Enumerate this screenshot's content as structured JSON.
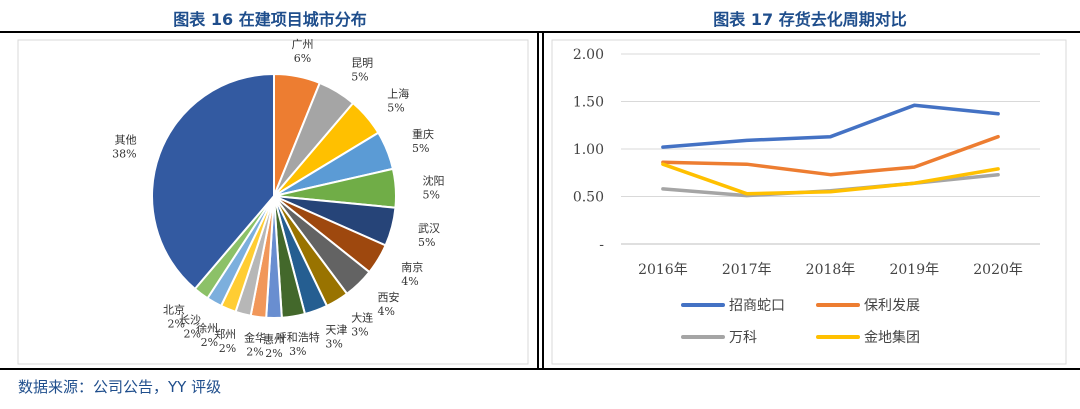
{
  "titles": {
    "pie": "图表 16 在建项目城市分布",
    "line": "图表 17 存货去化周期对比"
  },
  "source": "数据来源：公司公告，YY 评级",
  "chart_data": [
    {
      "type": "pie",
      "title": "图表 16 在建项目城市分布",
      "slices": [
        {
          "name": "广州",
          "value": 6,
          "label": "6%",
          "color": "#ed7d31"
        },
        {
          "name": "昆明",
          "value": 5,
          "label": "5%",
          "color": "#a5a5a5"
        },
        {
          "name": "上海",
          "value": 5,
          "label": "5%",
          "color": "#ffc000"
        },
        {
          "name": "重庆",
          "value": 5,
          "label": "5%",
          "color": "#5b9bd5"
        },
        {
          "name": "沈阳",
          "value": 5,
          "label": "5%",
          "color": "#70ad47"
        },
        {
          "name": "武汉",
          "value": 5,
          "label": "5%",
          "color": "#264478"
        },
        {
          "name": "南京",
          "value": 4,
          "label": "4%",
          "color": "#9e480e"
        },
        {
          "name": "西安",
          "value": 4,
          "label": "4%",
          "color": "#636363"
        },
        {
          "name": "大连",
          "value": 3,
          "label": "3%",
          "color": "#997300"
        },
        {
          "name": "天津",
          "value": 3,
          "label": "3%",
          "color": "#255e91"
        },
        {
          "name": "呼和浩特",
          "value": 3,
          "label": "3%",
          "color": "#43682b"
        },
        {
          "name": "惠州",
          "value": 2,
          "label": "2%",
          "color": "#698ed0"
        },
        {
          "name": "金华",
          "value": 2,
          "label": "2%",
          "color": "#f1975a"
        },
        {
          "name": "郑州",
          "value": 2,
          "label": "2%",
          "color": "#b7b7b7"
        },
        {
          "name": "徐州",
          "value": 2,
          "label": "2%",
          "color": "#ffcd33"
        },
        {
          "name": "长沙",
          "value": 2,
          "label": "2%",
          "color": "#7cafdd"
        },
        {
          "name": "北京",
          "value": 2,
          "label": "2%",
          "color": "#8cc168"
        },
        {
          "name": "其他",
          "value": 38,
          "label": "38%",
          "color": "#335aa1"
        }
      ]
    },
    {
      "type": "line",
      "title": "图表 17 存货去化周期对比",
      "categories": [
        "2016年",
        "2017年",
        "2018年",
        "2019年",
        "2020年"
      ],
      "ylim": [
        0,
        2.0
      ],
      "yticks": [
        0,
        0.5,
        1.0,
        1.5,
        2.0
      ],
      "ytick_labels": [
        "-",
        "0.50",
        "1.00",
        "1.50",
        "2.00"
      ],
      "series": [
        {
          "name": "招商蛇口",
          "color": "#4472c4",
          "values": [
            1.02,
            1.09,
            1.13,
            1.46,
            1.37
          ]
        },
        {
          "name": "保利发展",
          "color": "#ed7d31",
          "values": [
            0.86,
            0.84,
            0.73,
            0.81,
            1.13
          ]
        },
        {
          "name": "万科",
          "color": "#a5a5a5",
          "values": [
            0.58,
            0.51,
            0.56,
            0.64,
            0.73
          ]
        },
        {
          "name": "金地集团",
          "color": "#ffc000",
          "values": [
            0.84,
            0.53,
            0.55,
            0.64,
            0.79
          ]
        }
      ]
    }
  ]
}
